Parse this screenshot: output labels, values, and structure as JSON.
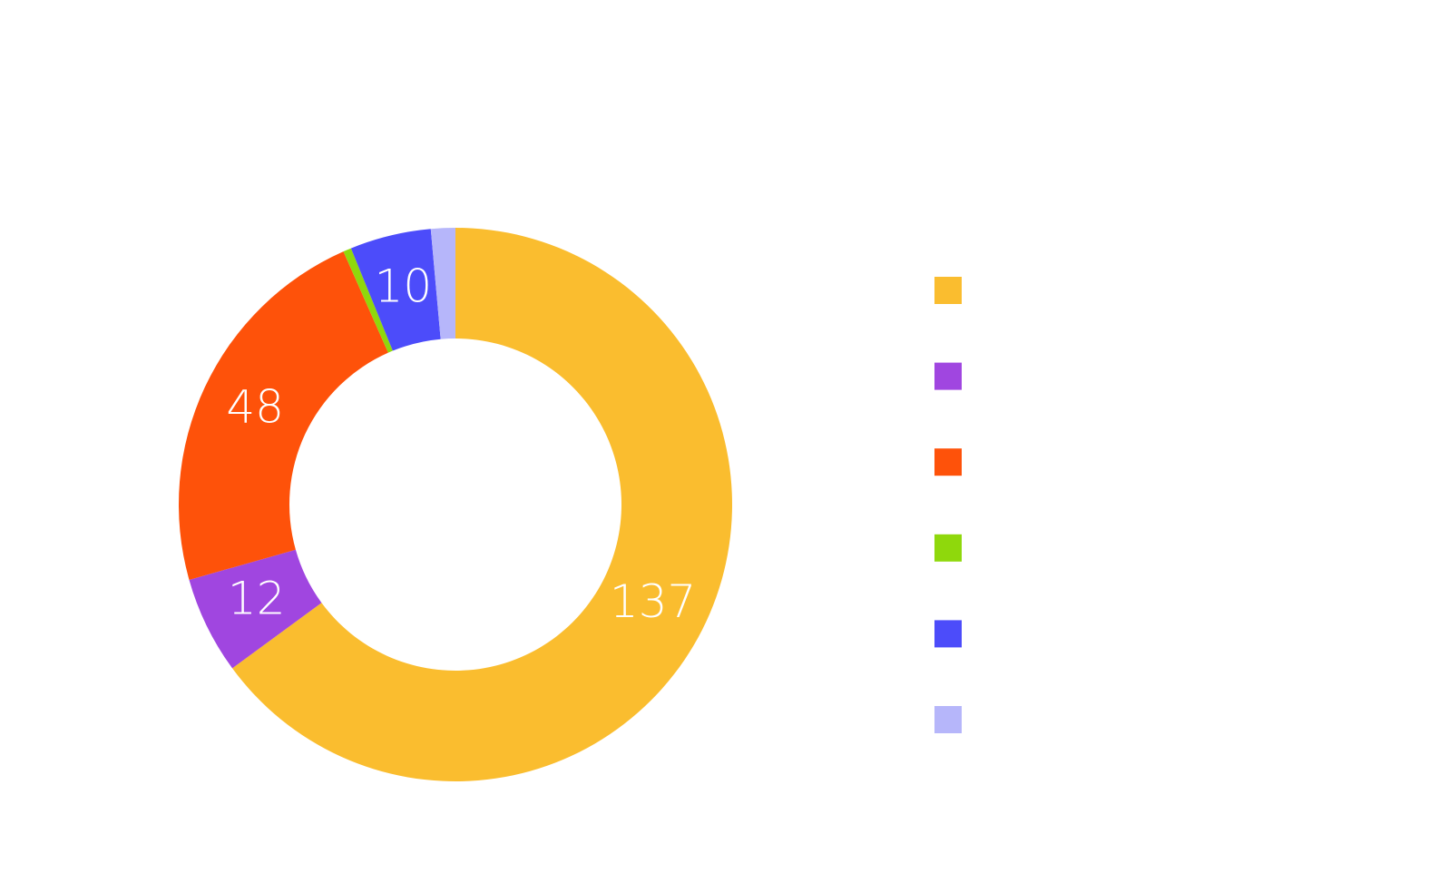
{
  "chart_data": {
    "type": "donut",
    "categories": [
      null,
      null,
      null,
      null,
      null,
      null
    ],
    "values": [
      137,
      12,
      48,
      1,
      10,
      3
    ],
    "colors": [
      "#fabd2f",
      "#a046e0",
      "#fe520a",
      "#8fd80c",
      "#4c4cfa",
      "#b6b6fa"
    ],
    "legend": "right"
  }
}
